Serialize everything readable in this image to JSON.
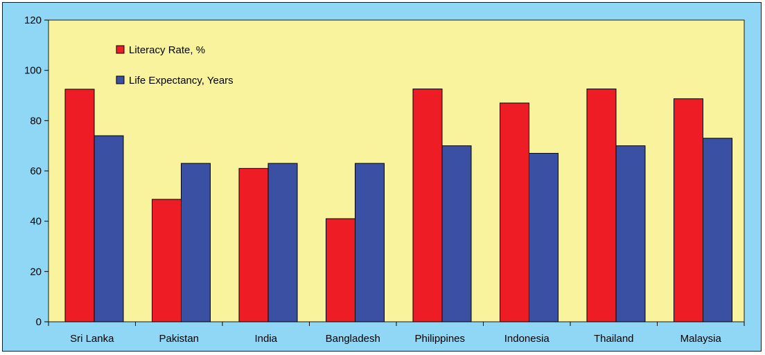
{
  "chart_data": {
    "type": "bar",
    "categories": [
      "Sri Lanka",
      "Pakistan",
      "India",
      "Bangladesh",
      "Philippines",
      "Indonesia",
      "Thailand",
      "Malaysia"
    ],
    "series": [
      {
        "name": "Literacy Rate, %",
        "color": "#ee1c24",
        "values": [
          92.5,
          48.7,
          61,
          41,
          92.6,
          87,
          92.6,
          88.7
        ]
      },
      {
        "name": "Life Expectancy, Years",
        "color": "#3a51a3",
        "values": [
          74,
          63,
          63,
          63,
          70,
          67,
          70,
          73
        ]
      }
    ],
    "ylim": [
      0,
      120
    ],
    "yticks": [
      0,
      20,
      40,
      60,
      80,
      100,
      120
    ],
    "legend_position": "top-left-inside",
    "plot_background": "#f8f39c",
    "frame_background": "#8fd7f5",
    "grid": false
  }
}
